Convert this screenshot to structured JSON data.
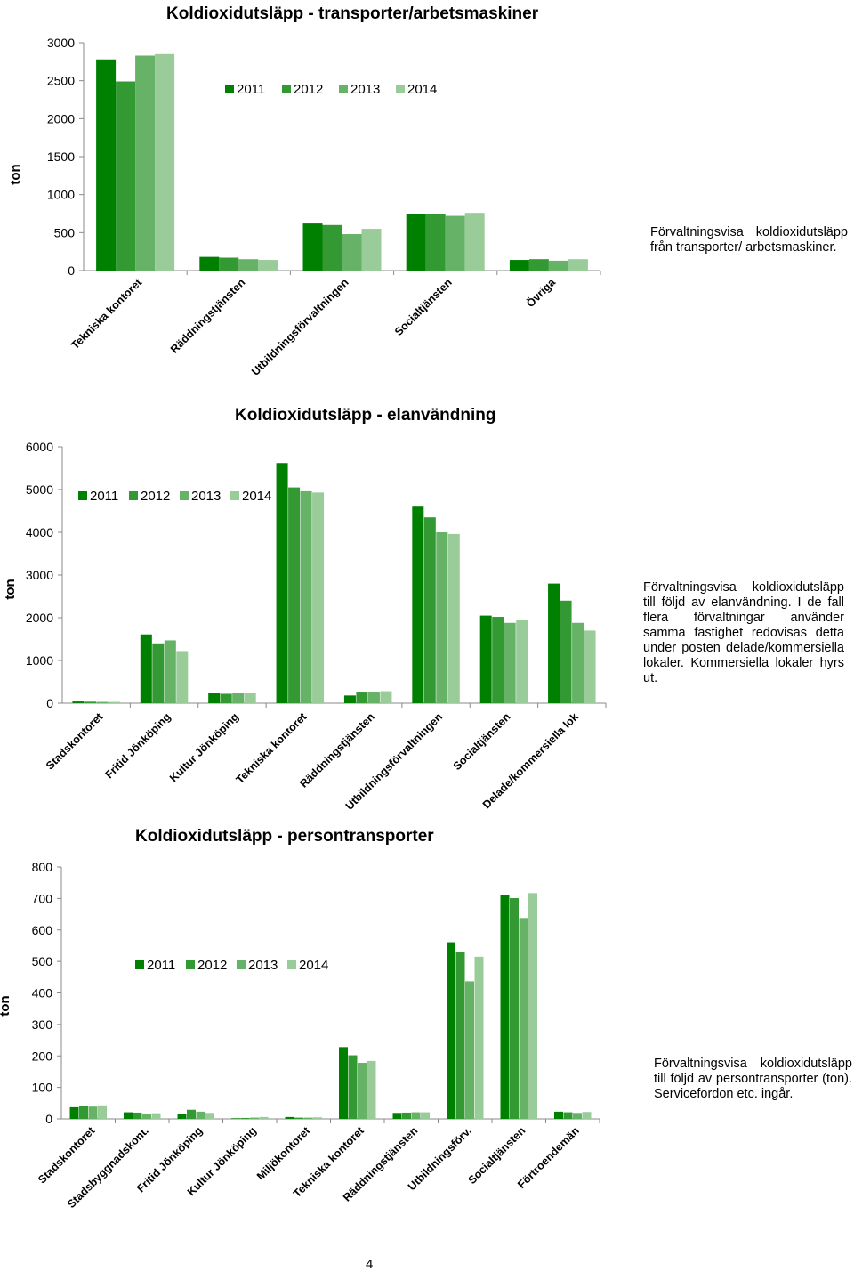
{
  "page": {
    "number": "4"
  },
  "chart_data": [
    {
      "type": "bar",
      "title": "Koldioxidutsläpp - transporter/arbetsmaskiner",
      "ylabel": "ton",
      "ylim": [
        0,
        3000
      ],
      "yticks": [
        0,
        500,
        1000,
        1500,
        2000,
        2500,
        3000
      ],
      "grid": false,
      "legend": "top-center",
      "categories": [
        "Tekniska kontoret",
        "Räddningstjänsten",
        "Utbildningsförvaltningen",
        "Socialtjänsten",
        "Övriga"
      ],
      "series": [
        {
          "name": "2011",
          "color": "#008000",
          "values": [
            2780,
            180,
            620,
            750,
            140
          ]
        },
        {
          "name": "2012",
          "color": "#339933",
          "values": [
            2490,
            170,
            600,
            750,
            150
          ]
        },
        {
          "name": "2013",
          "color": "#66b266",
          "values": [
            2830,
            150,
            480,
            720,
            130
          ]
        },
        {
          "name": "2014",
          "color": "#99cc99",
          "values": [
            2850,
            140,
            550,
            760,
            150
          ]
        }
      ]
    },
    {
      "type": "bar",
      "title": "Koldioxidutsläpp - elanvändning",
      "ylabel": "ton",
      "ylim": [
        0,
        6000
      ],
      "yticks": [
        0,
        1000,
        2000,
        3000,
        4000,
        5000,
        6000
      ],
      "grid": false,
      "legend": "top-left",
      "categories": [
        "Stadskontoret",
        "Fritid Jönköping",
        "Kultur Jönköping",
        "Tekniska kontoret",
        "Räddningstjänsten",
        "Utbildningsförvaltningen",
        "Socialtjänsten",
        "Delade/kommersiella lok"
      ],
      "series": [
        {
          "name": "2011",
          "color": "#008000",
          "values": [
            40,
            1610,
            230,
            5620,
            180,
            4600,
            2050,
            2800
          ]
        },
        {
          "name": "2012",
          "color": "#339933",
          "values": [
            35,
            1400,
            220,
            5050,
            270,
            4350,
            2020,
            2400
          ]
        },
        {
          "name": "2013",
          "color": "#66b266",
          "values": [
            30,
            1470,
            240,
            4960,
            270,
            4000,
            1880,
            1880
          ]
        },
        {
          "name": "2014",
          "color": "#99cc99",
          "values": [
            30,
            1220,
            240,
            4930,
            280,
            3960,
            1940,
            1700
          ]
        }
      ]
    },
    {
      "type": "bar",
      "title": "Koldioxidutsläpp - persontransporter",
      "ylabel": "ton",
      "ylim": [
        0,
        800
      ],
      "yticks": [
        0,
        100,
        200,
        300,
        400,
        500,
        600,
        700,
        800
      ],
      "grid": false,
      "legend": "center",
      "categories": [
        "Stadskontoret",
        "Stadsbyggnadskont.",
        "Fritid Jönköping",
        "Kultur Jönköping",
        "Miljökontoret",
        "Tekniska kontoret",
        "Räddningstjänsten",
        "Utbildningsförv.",
        "Socialtjänsten",
        "Förtroendemän"
      ],
      "series": [
        {
          "name": "2011",
          "color": "#008000",
          "values": [
            37,
            21,
            16,
            2,
            6,
            228,
            19,
            561,
            711,
            23
          ]
        },
        {
          "name": "2012",
          "color": "#339933",
          "values": [
            42,
            20,
            29,
            3,
            4,
            202,
            20,
            531,
            701,
            21
          ]
        },
        {
          "name": "2013",
          "color": "#66b266",
          "values": [
            39,
            17,
            23,
            4,
            4,
            178,
            21,
            437,
            638,
            19
          ]
        },
        {
          "name": "2014",
          "color": "#99cc99",
          "values": [
            43,
            18,
            19,
            6,
            5,
            184,
            21,
            515,
            717,
            22
          ]
        }
      ]
    }
  ],
  "descriptions": [
    "Förvaltningsvisa koldioxidutsläpp från transporter/ arbetsmaskiner.",
    "Förvaltningsvisa koldioxidutsläpp till följd av elanvändning. I de fall flera förvaltningar använder samma fastighet redovisas detta under posten delade/kommersiella lokaler. Kommersiella lokaler hyrs ut.",
    "Förvaltningsvisa koldioxidutsläpp till följd av persontransporter (ton). Servicefordon etc. ingår."
  ]
}
